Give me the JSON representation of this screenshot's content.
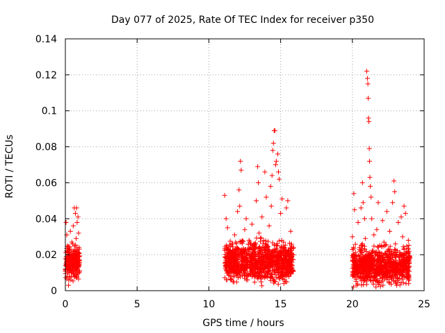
{
  "chart_data": {
    "type": "scatter",
    "title": "Day 077 of 2025, Rate Of TEC Index for receiver p350",
    "xlabel": "GPS time / hours",
    "ylabel": "ROTI / TECUs",
    "xlim": [
      0,
      25
    ],
    "ylim": [
      0,
      0.14
    ],
    "x_ticks": [
      "0",
      "5",
      "10",
      "15",
      "20",
      "25"
    ],
    "y_ticks": [
      "0",
      "0.02",
      "0.04",
      "0.06",
      "0.08",
      "0.1",
      "0.12",
      "0.14"
    ],
    "x_tick_values": [
      0,
      5,
      10,
      15,
      20,
      25
    ],
    "y_tick_values": [
      0,
      0.02,
      0.04,
      0.06,
      0.08,
      0.1,
      0.12,
      0.14
    ],
    "grid": true,
    "marker": "+",
    "marker_color": "#ff0000",
    "series": [
      {
        "points": [
          [
            0.0,
            0.012
          ],
          [
            0.05,
            0.038
          ],
          [
            0.1,
            0.031
          ],
          [
            0.12,
            0.008
          ],
          [
            0.15,
            0.025
          ],
          [
            0.2,
            0.018
          ],
          [
            0.22,
            0.003
          ],
          [
            0.25,
            0.014
          ],
          [
            0.3,
            0.021
          ],
          [
            0.35,
            0.033
          ],
          [
            0.38,
            0.006
          ],
          [
            0.4,
            0.016
          ],
          [
            0.45,
            0.027
          ],
          [
            0.5,
            0.019
          ],
          [
            0.55,
            0.036
          ],
          [
            0.6,
            0.01
          ],
          [
            0.62,
            0.046
          ],
          [
            0.65,
            0.022
          ],
          [
            0.7,
            0.043
          ],
          [
            0.72,
            0.015
          ],
          [
            0.75,
            0.029
          ],
          [
            0.78,
            0.046
          ],
          [
            0.8,
            0.008
          ],
          [
            0.82,
            0.038
          ],
          [
            0.85,
            0.02
          ],
          [
            0.88,
            0.041
          ],
          [
            0.9,
            0.013
          ],
          [
            0.92,
            0.032
          ],
          [
            0.95,
            0.024
          ],
          [
            0.98,
            0.017
          ],
          [
            1.0,
            0.011
          ],
          [
            11.1,
            0.053
          ],
          [
            11.15,
            0.014
          ],
          [
            11.2,
            0.04
          ],
          [
            11.25,
            0.006
          ],
          [
            11.3,
            0.035
          ],
          [
            11.4,
            0.021
          ],
          [
            11.5,
            0.012
          ],
          [
            11.6,
            0.026
          ],
          [
            11.7,
            0.008
          ],
          [
            11.8,
            0.031
          ],
          [
            11.9,
            0.017
          ],
          [
            12.0,
            0.044
          ],
          [
            12.1,
            0.056
          ],
          [
            12.15,
            0.047
          ],
          [
            12.2,
            0.072
          ],
          [
            12.25,
            0.067
          ],
          [
            12.3,
            0.023
          ],
          [
            12.4,
            0.011
          ],
          [
            12.5,
            0.034
          ],
          [
            12.6,
            0.04
          ],
          [
            12.7,
            0.006
          ],
          [
            12.8,
            0.028
          ],
          [
            12.9,
            0.018
          ],
          [
            13.0,
            0.037
          ],
          [
            13.1,
            0.013
          ],
          [
            13.2,
            0.025
          ],
          [
            13.3,
            0.05
          ],
          [
            13.4,
            0.069
          ],
          [
            13.45,
            0.06
          ],
          [
            13.5,
            0.032
          ],
          [
            13.6,
            0.008
          ],
          [
            13.7,
            0.041
          ],
          [
            13.8,
            0.016
          ],
          [
            13.9,
            0.066
          ],
          [
            14.0,
            0.052
          ],
          [
            14.1,
            0.012
          ],
          [
            14.2,
            0.036
          ],
          [
            14.3,
            0.058
          ],
          [
            14.35,
            0.047
          ],
          [
            14.4,
            0.064
          ],
          [
            14.45,
            0.078
          ],
          [
            14.5,
            0.082
          ],
          [
            14.55,
            0.089
          ],
          [
            14.6,
            0.089
          ],
          [
            14.65,
            0.07
          ],
          [
            14.7,
            0.072
          ],
          [
            14.8,
            0.076
          ],
          [
            14.85,
            0.066
          ],
          [
            14.9,
            0.062
          ],
          [
            15.0,
            0.043
          ],
          [
            15.1,
            0.051
          ],
          [
            15.2,
            0.027
          ],
          [
            15.3,
            0.009
          ],
          [
            15.4,
            0.046
          ],
          [
            15.5,
            0.05
          ],
          [
            15.6,
            0.02
          ],
          [
            15.7,
            0.033
          ],
          [
            15.8,
            0.014
          ],
          [
            15.9,
            0.024
          ],
          [
            20.0,
            0.03
          ],
          [
            20.05,
            0.008
          ],
          [
            20.1,
            0.054
          ],
          [
            20.15,
            0.045
          ],
          [
            20.2,
            0.019
          ],
          [
            20.3,
            0.003
          ],
          [
            20.4,
            0.038
          ],
          [
            20.5,
            0.024
          ],
          [
            20.6,
            0.046
          ],
          [
            20.7,
            0.06
          ],
          [
            20.75,
            0.049
          ],
          [
            20.8,
            0.012
          ],
          [
            20.85,
            0.04
          ],
          [
            20.9,
            0.029
          ],
          [
            21.0,
            0.122
          ],
          [
            21.05,
            0.118
          ],
          [
            21.08,
            0.115
          ],
          [
            21.1,
            0.107
          ],
          [
            21.12,
            0.096
          ],
          [
            21.15,
            0.094
          ],
          [
            21.18,
            0.079
          ],
          [
            21.2,
            0.072
          ],
          [
            21.22,
            0.063
          ],
          [
            21.25,
            0.058
          ],
          [
            21.3,
            0.052
          ],
          [
            21.35,
            0.04
          ],
          [
            21.4,
            0.017
          ],
          [
            21.5,
            0.031
          ],
          [
            21.6,
            0.008
          ],
          [
            21.7,
            0.034
          ],
          [
            21.8,
            0.049
          ],
          [
            21.9,
            0.021
          ],
          [
            22.0,
            0.014
          ],
          [
            22.1,
            0.039
          ],
          [
            22.2,
            0.027
          ],
          [
            22.3,
            0.01
          ],
          [
            22.4,
            0.044
          ],
          [
            22.5,
            0.023
          ],
          [
            22.6,
            0.033
          ],
          [
            22.7,
            0.016
          ],
          [
            22.8,
            0.049
          ],
          [
            22.9,
            0.061
          ],
          [
            22.95,
            0.055
          ],
          [
            23.0,
            0.026
          ],
          [
            23.1,
            0.011
          ],
          [
            23.2,
            0.038
          ],
          [
            23.3,
            0.019
          ],
          [
            23.4,
            0.041
          ],
          [
            23.5,
            0.03
          ],
          [
            23.6,
            0.047
          ],
          [
            23.7,
            0.043
          ],
          [
            23.8,
            0.012
          ],
          [
            23.9,
            0.028
          ],
          [
            24.0,
            0.018
          ]
        ]
      }
    ],
    "dense_clusters": [
      {
        "x_range": [
          0.0,
          1.0
        ],
        "y_center": 0.016,
        "y_spread": 0.009
      },
      {
        "x_range": [
          11.1,
          15.9
        ],
        "y_center": 0.016,
        "y_spread": 0.011
      },
      {
        "x_range": [
          20.0,
          24.0
        ],
        "y_center": 0.014,
        "y_spread": 0.01
      }
    ]
  }
}
